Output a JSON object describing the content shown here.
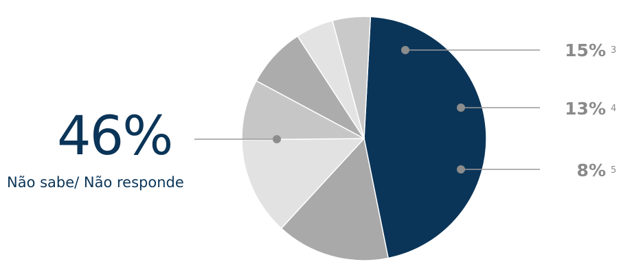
{
  "chart_data": {
    "type": "pie",
    "slices": [
      {
        "value": 46,
        "label": "46%",
        "name": "Não sabe/ Não responde",
        "color": "#0b3558"
      },
      {
        "value": 15,
        "label": "15%",
        "index": "3",
        "color": "#a9a9a9"
      },
      {
        "value": 13,
        "label": "13%",
        "index": "4",
        "color": "#e2e2e2"
      },
      {
        "value": 8,
        "label": "8%",
        "index": "5",
        "color": "#c6c6c6"
      },
      {
        "value": 8,
        "color": "#acacac"
      },
      {
        "value": 5,
        "color": "#e3e3e3"
      },
      {
        "value": 5,
        "color": "#c9c9c9"
      }
    ],
    "start_angle_deg": 3,
    "direction": "clockwise"
  },
  "callouts": {
    "main": {
      "pct": "46%",
      "label": "Não sabe/ Não responde"
    },
    "side": [
      {
        "pct": "15%",
        "index": "3"
      },
      {
        "pct": "13%",
        "index": "4"
      },
      {
        "pct": "8%",
        "index": "5"
      }
    ]
  },
  "colors": {
    "accent": "#0b3558",
    "muted_text": "#8a8a8a",
    "leader_line": "#999999",
    "dot": "#8c8c8c"
  }
}
